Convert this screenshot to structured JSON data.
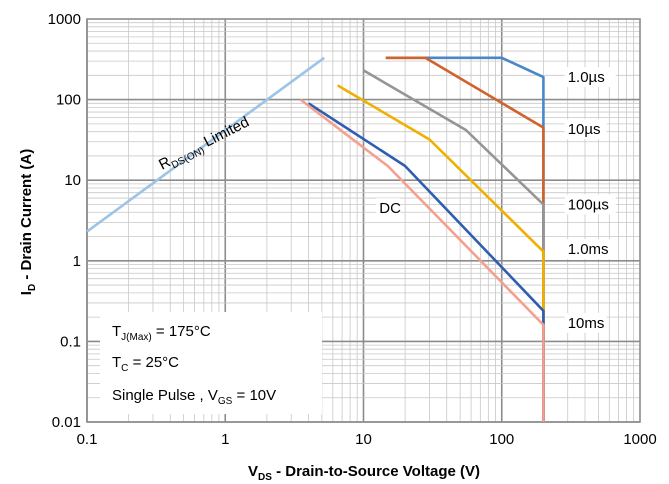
{
  "chart_data": {
    "type": "line",
    "title": "",
    "xlabel": {
      "main": "V",
      "sub": "DS",
      "rest": " - Drain-to-Source Voltage (V)"
    },
    "ylabel": {
      "main": "I",
      "sub": "D",
      "rest": " - Drain Current (A)"
    },
    "x_scale": "log",
    "y_scale": "log",
    "xlim": [
      0.1,
      1000
    ],
    "ylim": [
      0.01,
      1000
    ],
    "grid": true,
    "x_ticks": [
      "0.1",
      "1",
      "10",
      "100",
      "1000"
    ],
    "y_ticks": [
      "0.01",
      "0.1",
      "1",
      "10",
      "100",
      "1000"
    ],
    "series": [
      {
        "name": "RDS(ON) Limited",
        "color": "#9dc3e6",
        "points": [
          [
            0.1,
            2.3
          ],
          [
            5.2,
            330
          ]
        ]
      },
      {
        "name": "1.0µs",
        "color": "#4a86c8",
        "points": [
          [
            14.5,
            330
          ],
          [
            100,
            330
          ],
          [
            200,
            190
          ],
          [
            200,
            0.01
          ]
        ]
      },
      {
        "name": "10µs",
        "color": "#d0632b",
        "points": [
          [
            14.5,
            330
          ],
          [
            28,
            330
          ],
          [
            200,
            45
          ],
          [
            200,
            0.01
          ]
        ]
      },
      {
        "name": "100µs",
        "color": "#959595",
        "points": [
          [
            10,
            230
          ],
          [
            55,
            42
          ],
          [
            200,
            5
          ],
          [
            200,
            0.01
          ]
        ]
      },
      {
        "name": "1.0ms",
        "color": "#f0b000",
        "points": [
          [
            6.5,
            150
          ],
          [
            30,
            32
          ],
          [
            200,
            1.3
          ],
          [
            200,
            0.01
          ]
        ]
      },
      {
        "name": "10ms",
        "color": "#2f5db0",
        "points": [
          [
            4,
            90
          ],
          [
            20,
            15
          ],
          [
            200,
            0.24
          ],
          [
            200,
            0.01
          ]
        ]
      },
      {
        "name": "DC",
        "color": "#f4a090",
        "points": [
          [
            3.5,
            100
          ],
          [
            15,
            15
          ],
          [
            200,
            0.16
          ],
          [
            200,
            0.01
          ]
        ]
      }
    ],
    "series_labels": [
      {
        "text": "1.0µs",
        "x": 300,
        "y": 190
      },
      {
        "text": "10µs",
        "x": 300,
        "y": 43
      },
      {
        "text": "100µs",
        "x": 300,
        "y": 5
      },
      {
        "text": "1.0ms",
        "x": 300,
        "y": 1.4
      },
      {
        "text": "10ms",
        "x": 300,
        "y": 0.17
      },
      {
        "text": "DC",
        "x": 13,
        "y": 4.5
      }
    ],
    "conditions": [
      {
        "main": "T",
        "sub": "J(Max)",
        "rest": " = 175°C"
      },
      {
        "main": "T",
        "sub": "C",
        "rest": " = 25°C"
      },
      {
        "main": "Single Pulse , V",
        "sub": "GS",
        "rest": " = 10V"
      }
    ],
    "rds_label": {
      "main": "R",
      "sub": "DS(ON)",
      "rest": " Limited"
    }
  }
}
